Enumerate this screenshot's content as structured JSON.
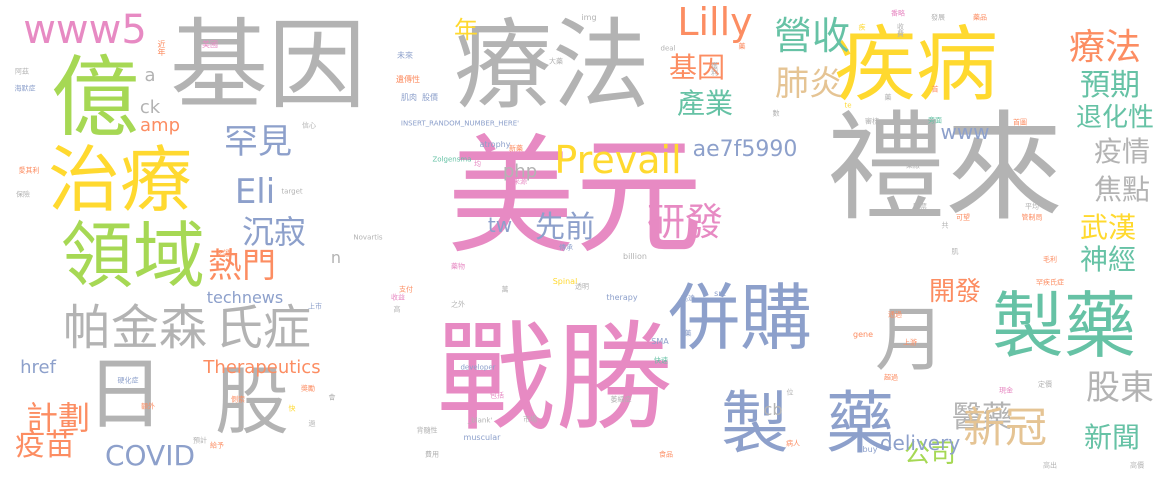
{
  "palette": [
    "#fc8d62",
    "#8da0cb",
    "#66c2a5",
    "#e78ac3",
    "#a6d854",
    "#ffd92f",
    "#e5c494",
    "#b3b3b3"
  ],
  "words": [
    {
      "text": "美元",
      "color": 3
    },
    {
      "text": "禮來",
      "color": 7
    },
    {
      "text": "戰勝",
      "color": 3
    },
    {
      "text": "基因",
      "color": 7
    },
    {
      "text": "療法",
      "color": 7
    },
    {
      "text": "疾病",
      "color": 5
    },
    {
      "text": "億",
      "color": 4
    },
    {
      "text": "治療",
      "color": 5
    },
    {
      "text": "領域",
      "color": 4
    },
    {
      "text": "日",
      "color": 7
    },
    {
      "text": "股",
      "color": 7
    },
    {
      "text": "併購",
      "color": 1
    },
    {
      "text": "製藥",
      "color": 2
    },
    {
      "text": "製",
      "color": 1
    },
    {
      "text": "藥",
      "color": 1
    },
    {
      "text": "月",
      "color": 7
    },
    {
      "text": "帕金森",
      "color": 7
    },
    {
      "text": "氏症",
      "color": 7
    },
    {
      "text": "www5",
      "color": 3
    },
    {
      "text": "Lilly",
      "color": 0
    },
    {
      "text": "營收",
      "color": 2
    },
    {
      "text": "療法",
      "color": 0
    },
    {
      "text": "Prevail",
      "color": 5
    },
    {
      "text": "Eli",
      "color": 1
    },
    {
      "text": "罕見",
      "color": 1
    },
    {
      "text": "熱門",
      "color": 0
    },
    {
      "text": "沉寂",
      "color": 1
    },
    {
      "text": "研發",
      "color": 3
    },
    {
      "text": "先前",
      "color": 1
    },
    {
      "text": "肺炎",
      "color": 6
    },
    {
      "text": "基因",
      "color": 0
    },
    {
      "text": "產業",
      "color": 2
    },
    {
      "text": "預期",
      "color": 2
    },
    {
      "text": "退化性",
      "color": 2
    },
    {
      "text": "疫情",
      "color": 7
    },
    {
      "text": "焦點",
      "color": 7
    },
    {
      "text": "武漢",
      "color": 5
    },
    {
      "text": "神經",
      "color": 2
    },
    {
      "text": "開發",
      "color": 0
    },
    {
      "text": "股東",
      "color": 7
    },
    {
      "text": "醫藥",
      "color": 7
    },
    {
      "text": "新冠",
      "color": 6
    },
    {
      "text": "新聞",
      "color": 2
    },
    {
      "text": "公司",
      "color": 4
    },
    {
      "text": "計劃",
      "color": 0
    },
    {
      "text": "疫苗",
      "color": 0
    },
    {
      "text": "COVID",
      "color": 1
    },
    {
      "text": "Therapeutics",
      "color": 0
    },
    {
      "text": "technews",
      "color": 1
    },
    {
      "text": "href",
      "color": 1
    },
    {
      "text": "delivery",
      "color": 1
    },
    {
      "text": "ae7f5990",
      "color": 1
    },
    {
      "text": "www",
      "color": 1
    },
    {
      "text": "php",
      "color": 7
    },
    {
      "text": "tw",
      "color": 1
    },
    {
      "text": "cb",
      "color": 7
    },
    {
      "text": "n",
      "color": 7
    },
    {
      "text": "ck",
      "color": 7
    },
    {
      "text": "amp",
      "color": 0
    },
    {
      "text": "a",
      "color": 7
    },
    {
      "text": "年",
      "color": 5
    },
    {
      "text": "img",
      "color": 7
    },
    {
      "text": "近年",
      "color": 0
    },
    {
      "text": "美國",
      "color": 3
    },
    {
      "text": "未來",
      "color": 1
    },
    {
      "text": "遺傳性",
      "color": 0
    },
    {
      "text": "肌肉",
      "color": 1
    },
    {
      "text": "股價",
      "color": 1
    },
    {
      "text": "INSERT_RANDOM_NUMBER_HERE'",
      "color": 1
    },
    {
      "text": "atrophy",
      "color": 1
    },
    {
      "text": "Zolgensma",
      "color": 2
    },
    {
      "text": "target",
      "color": 7
    },
    {
      "text": "Novartis",
      "color": 7
    },
    {
      "text": "billion",
      "color": 7
    },
    {
      "text": "Spinal",
      "color": 5
    },
    {
      "text": "therapy",
      "color": 1
    },
    {
      "text": "SMA",
      "color": 1
    },
    {
      "text": "src",
      "color": 1
    },
    {
      "text": "gene",
      "color": 0
    },
    {
      "text": "developer",
      "color": 1
    },
    {
      "text": "muscular",
      "color": 1
    },
    {
      "text": "_blank'",
      "color": 7
    },
    {
      "text": "buy",
      "color": 1
    },
    {
      "text": "deal",
      "color": 7
    },
    {
      "text": "收費",
      "color": 7
    },
    {
      "text": "番略",
      "color": 3
    },
    {
      "text": "發展",
      "color": 7
    },
    {
      "text": "藥品",
      "color": 0
    },
    {
      "text": "te",
      "color": 5
    },
    {
      "text": "大藥",
      "color": 7
    },
    {
      "text": "獲利",
      "color": 7
    },
    {
      "text": "信心",
      "color": 7
    },
    {
      "text": "阿茲",
      "color": 7
    },
    {
      "text": "海默症",
      "color": 1
    },
    {
      "text": "數",
      "color": 7
    },
    {
      "text": "平均",
      "color": 3
    },
    {
      "text": "新藥",
      "color": 0
    },
    {
      "text": "來源",
      "color": 3
    },
    {
      "text": "愛其利",
      "color": 0
    },
    {
      "text": "保險",
      "color": 7
    },
    {
      "text": "股票",
      "color": 7
    },
    {
      "text": "審核",
      "color": 7
    },
    {
      "text": "首圖",
      "color": 0
    },
    {
      "text": "平均",
      "color": 7
    },
    {
      "text": "藥廠",
      "color": 7
    },
    {
      "text": "可望",
      "color": 0
    },
    {
      "text": "管制局",
      "color": 0
    },
    {
      "text": "毛利",
      "color": 0
    },
    {
      "text": "罕疾氏症",
      "color": 0
    },
    {
      "text": "旁面",
      "color": 2
    },
    {
      "text": "上游",
      "color": 0
    },
    {
      "text": "超過",
      "color": 0
    },
    {
      "text": "藥物",
      "color": 3
    },
    {
      "text": "上市",
      "color": 1
    },
    {
      "text": "收益",
      "color": 3
    },
    {
      "text": "支付",
      "color": 0
    },
    {
      "text": "之外",
      "color": 7
    },
    {
      "text": "市場",
      "color": 7
    },
    {
      "text": "背髓性",
      "color": 7
    },
    {
      "text": "病人",
      "color": 0
    },
    {
      "text": "食品",
      "color": 0
    },
    {
      "text": "費用",
      "color": 7
    },
    {
      "text": "獎勵",
      "color": 0
    },
    {
      "text": "硬化症",
      "color": 1
    },
    {
      "text": "側索",
      "color": 0
    },
    {
      "text": "預計",
      "color": 7
    },
    {
      "text": "包括",
      "color": 3
    },
    {
      "text": "萎縮症",
      "color": 7
    },
    {
      "text": "快速",
      "color": 2
    },
    {
      "text": "高達",
      "color": 1
    },
    {
      "text": "認證",
      "color": 0
    },
    {
      "text": "高價",
      "color": 7
    },
    {
      "text": "高出",
      "color": 7
    },
    {
      "text": "定價",
      "color": 7
    },
    {
      "text": "現金",
      "color": 3
    },
    {
      "text": "給予",
      "color": 0
    },
    {
      "text": "額外",
      "color": 0
    },
    {
      "text": "透明",
      "color": 7
    },
    {
      "text": "通過",
      "color": 0
    },
    {
      "text": "首",
      "color": 0
    },
    {
      "text": "藥",
      "color": 1
    },
    {
      "text": "傳承",
      "color": 1
    },
    {
      "text": "肌",
      "color": 7
    },
    {
      "text": "共",
      "color": 7
    },
    {
      "text": "位",
      "color": 7
    },
    {
      "text": "藥",
      "color": 7
    },
    {
      "text": "高",
      "color": 7
    },
    {
      "text": "快",
      "color": 5
    },
    {
      "text": "會",
      "color": 7
    },
    {
      "text": "過",
      "color": 7
    },
    {
      "text": "疾",
      "color": 5
    },
    {
      "text": "萬",
      "color": 7
    },
    {
      "text": "藥",
      "color": 0
    }
  ]
}
